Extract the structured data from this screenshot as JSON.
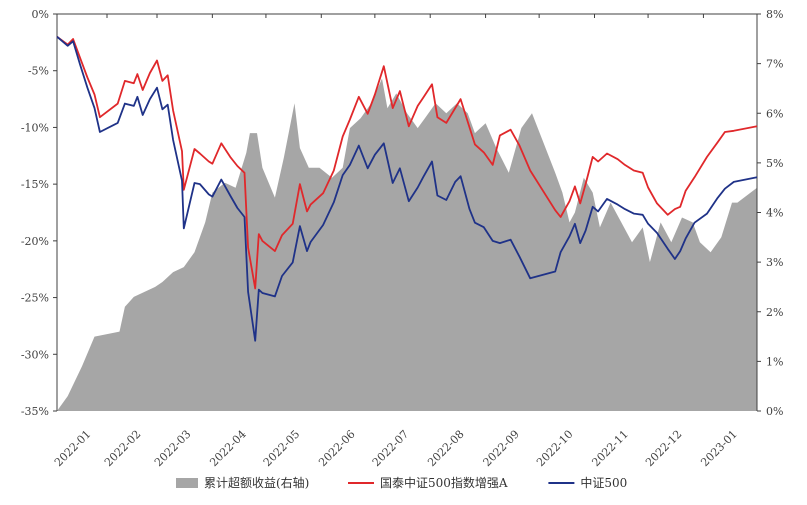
{
  "chart_data": {
    "type": "line+area",
    "title": "",
    "left_axis": {
      "ylim": [
        -35,
        0
      ],
      "ticks": [
        0,
        -5,
        -10,
        -15,
        -20,
        -25,
        -30,
        -35
      ],
      "tick_labels": [
        "0%",
        "-5%",
        "-10%",
        "-15%",
        "-20%",
        "-25%",
        "-30%",
        "-35%"
      ]
    },
    "right_axis": {
      "ylim": [
        0,
        8
      ],
      "ticks": [
        0,
        1,
        2,
        3,
        4,
        5,
        6,
        7,
        8
      ],
      "tick_labels": [
        "0%",
        "1%",
        "2%",
        "3%",
        "4%",
        "5%",
        "6%",
        "7%",
        "8%"
      ]
    },
    "x_axis": {
      "range": [
        "2022-01-04",
        "2023-01-31"
      ],
      "ticks": [
        "2022-01-01",
        "2022-02-01",
        "2022-03-01",
        "2022-04-01",
        "2022-05-01",
        "2022-06-01",
        "2022-07-01",
        "2022-08-01",
        "2022-09-01",
        "2022-10-01",
        "2022-11-01",
        "2022-12-01",
        "2023-01-01"
      ],
      "tick_labels": [
        "2022-01",
        "2022-02",
        "2022-03",
        "2022-04",
        "2022-05",
        "2022-06",
        "2022-07",
        "2022-08",
        "2022-09",
        "2022-10",
        "2022-11",
        "2022-12",
        "2023-01"
      ]
    },
    "grid": false,
    "legend_position": "bottom",
    "series": [
      {
        "name": "累计超额收益(右轴)",
        "kind": "area",
        "axis": "right",
        "color": "#a6a6a6",
        "x": [
          "2022-01-04",
          "2022-01-10",
          "2022-01-18",
          "2022-01-25",
          "2022-02-08",
          "2022-02-11",
          "2022-02-16",
          "2022-02-22",
          "2022-02-28",
          "2022-03-04",
          "2022-03-10",
          "2022-03-16",
          "2022-03-22",
          "2022-03-28",
          "2022-04-01",
          "2022-04-08",
          "2022-04-14",
          "2022-04-20",
          "2022-04-22",
          "2022-04-26",
          "2022-04-29",
          "2022-05-06",
          "2022-05-11",
          "2022-05-17",
          "2022-05-20",
          "2022-05-25",
          "2022-05-31",
          "2022-06-07",
          "2022-06-13",
          "2022-06-17",
          "2022-06-23",
          "2022-06-29",
          "2022-07-05",
          "2022-07-08",
          "2022-07-13",
          "2022-07-19",
          "2022-07-25",
          "2022-07-29",
          "2022-08-04",
          "2022-08-10",
          "2022-08-16",
          "2022-08-22",
          "2022-08-26",
          "2022-09-01",
          "2022-09-07",
          "2022-09-14",
          "2022-09-21",
          "2022-09-27",
          "2022-10-10",
          "2022-10-14",
          "2022-10-18",
          "2022-10-21",
          "2022-10-26",
          "2022-10-31",
          "2022-11-04",
          "2022-11-10",
          "2022-11-16",
          "2022-11-22",
          "2022-11-28",
          "2022-12-02",
          "2022-12-08",
          "2022-12-14",
          "2022-12-20",
          "2022-12-26",
          "2022-12-30",
          "2023-01-05",
          "2023-01-11",
          "2023-01-17",
          "2023-01-20",
          "2023-01-31"
        ],
        "values": [
          0.0,
          0.3,
          0.9,
          1.5,
          1.6,
          2.1,
          2.3,
          2.4,
          2.5,
          2.6,
          2.8,
          2.9,
          3.2,
          3.8,
          4.4,
          4.6,
          4.5,
          5.2,
          5.6,
          5.6,
          4.9,
          4.3,
          5.1,
          6.2,
          5.3,
          4.9,
          4.9,
          4.7,
          4.9,
          5.7,
          5.9,
          6.2,
          6.7,
          6.1,
          6.4,
          6.0,
          5.7,
          5.9,
          6.2,
          6.0,
          6.2,
          6.0,
          5.6,
          5.8,
          5.3,
          4.8,
          5.7,
          6.0,
          4.8,
          4.4,
          3.8,
          4.0,
          4.7,
          4.4,
          3.7,
          4.2,
          3.8,
          3.4,
          3.7,
          3.0,
          3.8,
          3.4,
          3.9,
          3.8,
          3.4,
          3.2,
          3.5,
          4.2,
          4.2,
          4.5
        ]
      },
      {
        "name": "国泰中证500指数增强A",
        "kind": "line",
        "axis": "left",
        "color": "#e0282b",
        "x": [
          "2022-01-04",
          "2022-01-10",
          "2022-01-13",
          "2022-01-17",
          "2022-01-21",
          "2022-01-25",
          "2022-01-28",
          "2022-02-07",
          "2022-02-11",
          "2022-02-16",
          "2022-02-18",
          "2022-02-21",
          "2022-02-25",
          "2022-03-01",
          "2022-03-04",
          "2022-03-07",
          "2022-03-10",
          "2022-03-15",
          "2022-03-16",
          "2022-03-22",
          "2022-03-25",
          "2022-03-30",
          "2022-04-01",
          "2022-04-06",
          "2022-04-11",
          "2022-04-15",
          "2022-04-19",
          "2022-04-21",
          "2022-04-25",
          "2022-04-27",
          "2022-04-29",
          "2022-05-06",
          "2022-05-10",
          "2022-05-16",
          "2022-05-20",
          "2022-05-24",
          "2022-05-26",
          "2022-06-02",
          "2022-06-08",
          "2022-06-13",
          "2022-06-17",
          "2022-06-22",
          "2022-06-27",
          "2022-07-01",
          "2022-07-06",
          "2022-07-11",
          "2022-07-15",
          "2022-07-20",
          "2022-07-25",
          "2022-07-28",
          "2022-08-02",
          "2022-08-05",
          "2022-08-10",
          "2022-08-15",
          "2022-08-18",
          "2022-08-23",
          "2022-08-26",
          "2022-08-31",
          "2022-09-05",
          "2022-09-09",
          "2022-09-15",
          "2022-09-20",
          "2022-09-26",
          "2022-10-10",
          "2022-10-13",
          "2022-10-18",
          "2022-10-21",
          "2022-10-24",
          "2022-10-27",
          "2022-10-31",
          "2022-11-03",
          "2022-11-08",
          "2022-11-14",
          "2022-11-18",
          "2022-11-23",
          "2022-11-28",
          "2022-12-01",
          "2022-12-06",
          "2022-12-12",
          "2022-12-16",
          "2022-12-19",
          "2022-12-22",
          "2022-12-27",
          "2023-01-03",
          "2023-01-09",
          "2023-01-13",
          "2023-01-18",
          "2023-01-31"
        ],
        "values": [
          -2.0,
          -2.7,
          -2.2,
          -3.9,
          -5.6,
          -7.1,
          -9.1,
          -7.9,
          -5.9,
          -6.1,
          -5.3,
          -6.7,
          -5.2,
          -4.1,
          -5.9,
          -5.4,
          -8.5,
          -12.1,
          -15.5,
          -11.9,
          -12.3,
          -13.0,
          -13.2,
          -11.4,
          -12.6,
          -13.4,
          -14.0,
          -20.6,
          -24.2,
          -19.4,
          -20.0,
          -20.9,
          -19.5,
          -18.5,
          -15.0,
          -17.4,
          -16.8,
          -15.8,
          -13.8,
          -10.8,
          -9.3,
          -7.3,
          -8.8,
          -7.1,
          -4.6,
          -8.3,
          -6.8,
          -9.9,
          -8.1,
          -7.4,
          -6.2,
          -9.1,
          -9.6,
          -8.3,
          -7.5,
          -10.0,
          -11.5,
          -12.2,
          -13.3,
          -10.7,
          -10.2,
          -11.6,
          -13.8,
          -17.3,
          -17.9,
          -16.5,
          -15.2,
          -16.7,
          -15.0,
          -12.6,
          -13.0,
          -12.3,
          -12.8,
          -13.3,
          -13.8,
          -14.0,
          -15.3,
          -16.7,
          -17.7,
          -17.2,
          -17.0,
          -15.6,
          -14.4,
          -12.6,
          -11.3,
          -10.4,
          -10.3,
          -9.9
        ]
      },
      {
        "name": "中证500",
        "kind": "line",
        "axis": "left",
        "color": "#1f3288",
        "x": [
          "2022-01-04",
          "2022-01-10",
          "2022-01-13",
          "2022-01-17",
          "2022-01-21",
          "2022-01-25",
          "2022-01-28",
          "2022-02-07",
          "2022-02-11",
          "2022-02-16",
          "2022-02-18",
          "2022-02-21",
          "2022-02-25",
          "2022-03-01",
          "2022-03-04",
          "2022-03-07",
          "2022-03-10",
          "2022-03-15",
          "2022-03-16",
          "2022-03-22",
          "2022-03-25",
          "2022-03-30",
          "2022-04-01",
          "2022-04-06",
          "2022-04-11",
          "2022-04-15",
          "2022-04-19",
          "2022-04-21",
          "2022-04-25",
          "2022-04-27",
          "2022-04-29",
          "2022-05-06",
          "2022-05-10",
          "2022-05-16",
          "2022-05-20",
          "2022-05-24",
          "2022-05-26",
          "2022-06-02",
          "2022-06-08",
          "2022-06-13",
          "2022-06-17",
          "2022-06-22",
          "2022-06-27",
          "2022-07-01",
          "2022-07-06",
          "2022-07-11",
          "2022-07-15",
          "2022-07-20",
          "2022-07-25",
          "2022-07-28",
          "2022-08-02",
          "2022-08-05",
          "2022-08-10",
          "2022-08-15",
          "2022-08-18",
          "2022-08-23",
          "2022-08-26",
          "2022-08-31",
          "2022-09-05",
          "2022-09-09",
          "2022-09-15",
          "2022-09-20",
          "2022-09-26",
          "2022-10-10",
          "2022-10-13",
          "2022-10-18",
          "2022-10-21",
          "2022-10-24",
          "2022-10-27",
          "2022-10-31",
          "2022-11-03",
          "2022-11-08",
          "2022-11-14",
          "2022-11-18",
          "2022-11-23",
          "2022-11-28",
          "2022-12-01",
          "2022-12-06",
          "2022-12-12",
          "2022-12-16",
          "2022-12-19",
          "2022-12-22",
          "2022-12-27",
          "2023-01-03",
          "2023-01-09",
          "2023-01-13",
          "2023-01-18",
          "2023-01-31"
        ],
        "values": [
          -2.0,
          -2.8,
          -2.4,
          -4.5,
          -6.5,
          -8.3,
          -10.4,
          -9.6,
          -7.9,
          -8.1,
          -7.3,
          -8.9,
          -7.5,
          -6.5,
          -8.4,
          -8.0,
          -11.1,
          -14.7,
          -18.9,
          -14.9,
          -15.0,
          -15.9,
          -16.1,
          -14.6,
          -16.0,
          -17.1,
          -17.9,
          -24.5,
          -28.8,
          -24.3,
          -24.6,
          -24.9,
          -23.1,
          -21.9,
          -18.7,
          -20.9,
          -20.1,
          -18.6,
          -16.6,
          -14.2,
          -13.3,
          -11.6,
          -13.6,
          -12.4,
          -11.4,
          -14.9,
          -13.6,
          -16.5,
          -15.3,
          -14.4,
          -13.0,
          -16.0,
          -16.4,
          -14.8,
          -14.3,
          -17.2,
          -18.4,
          -18.8,
          -20.0,
          -20.2,
          -19.9,
          -21.4,
          -23.3,
          -22.7,
          -21.0,
          -19.6,
          -18.5,
          -20.2,
          -19.1,
          -17.0,
          -17.4,
          -16.3,
          -16.8,
          -17.2,
          -17.6,
          -17.7,
          -18.5,
          -19.3,
          -20.7,
          -21.6,
          -20.9,
          -19.8,
          -18.4,
          -17.6,
          -16.2,
          -15.4,
          -14.8,
          -14.4
        ]
      }
    ]
  }
}
